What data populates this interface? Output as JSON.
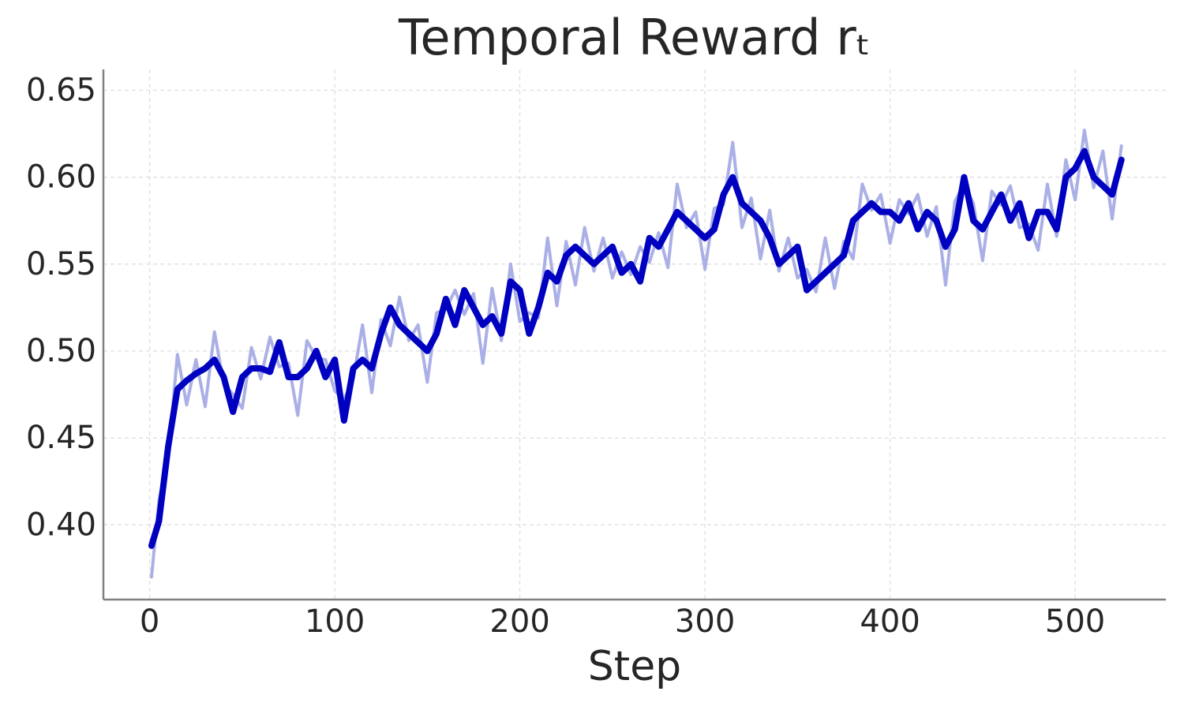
{
  "chart_data": {
    "type": "line",
    "title": "Temporal Reward rₜ",
    "xlabel": "Step",
    "x": [
      1,
      5,
      10,
      15,
      20,
      25,
      30,
      35,
      40,
      45,
      50,
      55,
      60,
      65,
      70,
      75,
      80,
      85,
      90,
      95,
      100,
      105,
      110,
      115,
      120,
      125,
      130,
      135,
      140,
      145,
      150,
      155,
      160,
      165,
      170,
      175,
      180,
      185,
      190,
      195,
      200,
      205,
      210,
      215,
      220,
      225,
      230,
      235,
      240,
      245,
      250,
      255,
      260,
      265,
      270,
      275,
      280,
      285,
      290,
      295,
      300,
      305,
      310,
      315,
      320,
      325,
      330,
      335,
      340,
      345,
      350,
      355,
      360,
      365,
      370,
      375,
      380,
      385,
      390,
      395,
      400,
      405,
      410,
      415,
      420,
      425,
      430,
      435,
      440,
      445,
      450,
      455,
      460,
      465,
      470,
      475,
      480,
      485,
      490,
      495,
      500,
      505,
      510,
      515,
      520,
      525
    ],
    "series": [
      {
        "color": "#aab0e6",
        "width": 4,
        "values": [
          0.37,
          0.414,
          0.439,
          0.498,
          0.469,
          0.495,
          0.468,
          0.511,
          0.481,
          0.475,
          0.467,
          0.502,
          0.484,
          0.508,
          0.491,
          0.493,
          0.463,
          0.506,
          0.496,
          0.495,
          0.477,
          0.472,
          0.484,
          0.515,
          0.476,
          0.518,
          0.503,
          0.531,
          0.506,
          0.515,
          0.482,
          0.522,
          0.524,
          0.535,
          0.521,
          0.533,
          0.493,
          0.536,
          0.506,
          0.55,
          0.517,
          0.522,
          0.519,
          0.565,
          0.526,
          0.563,
          0.538,
          0.571,
          0.546,
          0.565,
          0.542,
          0.557,
          0.544,
          0.56,
          0.551,
          0.568,
          0.548,
          0.596,
          0.571,
          0.58,
          0.547,
          0.582,
          0.584,
          0.62,
          0.571,
          0.588,
          0.553,
          0.581,
          0.546,
          0.565,
          0.542,
          0.547,
          0.534,
          0.565,
          0.536,
          0.563,
          0.553,
          0.596,
          0.581,
          0.59,
          0.562,
          0.587,
          0.579,
          0.59,
          0.566,
          0.583,
          0.538,
          0.586,
          0.596,
          0.585,
          0.552,
          0.592,
          0.584,
          0.595,
          0.571,
          0.573,
          0.558,
          0.596,
          0.566,
          0.61,
          0.587,
          0.627,
          0.594,
          0.615,
          0.576,
          0.618
        ]
      },
      {
        "color": "#0000c0",
        "width": 8,
        "values": [
          0.388,
          0.402,
          0.445,
          0.478,
          0.483,
          0.487,
          0.49,
          0.495,
          0.485,
          0.465,
          0.485,
          0.49,
          0.49,
          0.488,
          0.505,
          0.485,
          0.485,
          0.49,
          0.5,
          0.485,
          0.495,
          0.46,
          0.49,
          0.495,
          0.49,
          0.51,
          0.525,
          0.515,
          0.51,
          0.505,
          0.5,
          0.51,
          0.53,
          0.515,
          0.535,
          0.525,
          0.515,
          0.52,
          0.51,
          0.54,
          0.535,
          0.51,
          0.525,
          0.545,
          0.54,
          0.555,
          0.56,
          0.555,
          0.55,
          0.555,
          0.56,
          0.545,
          0.55,
          0.54,
          0.565,
          0.56,
          0.57,
          0.58,
          0.575,
          0.57,
          0.565,
          0.57,
          0.59,
          0.6,
          0.585,
          0.58,
          0.575,
          0.565,
          0.55,
          0.555,
          0.56,
          0.535,
          0.54,
          0.545,
          0.55,
          0.555,
          0.575,
          0.58,
          0.585,
          0.58,
          0.58,
          0.575,
          0.585,
          0.57,
          0.58,
          0.575,
          0.56,
          0.57,
          0.6,
          0.575,
          0.57,
          0.58,
          0.59,
          0.575,
          0.585,
          0.565,
          0.58,
          0.58,
          0.57,
          0.6,
          0.605,
          0.615,
          0.6,
          0.595,
          0.59,
          0.61
        ]
      }
    ],
    "xlim": [
      -25,
      549
    ],
    "ylim": [
      0.357,
      0.662
    ],
    "xticks": [
      0,
      100,
      200,
      300,
      400,
      500
    ],
    "yticks": [
      {
        "value": 0.4,
        "label": "0.40"
      },
      {
        "value": 0.45,
        "label": "0.45"
      },
      {
        "value": 0.5,
        "label": "0.50"
      },
      {
        "value": 0.55,
        "label": "0.55"
      },
      {
        "value": 0.6,
        "label": "0.60"
      },
      {
        "value": 0.65,
        "label": "0.65"
      }
    ],
    "grid": true
  }
}
